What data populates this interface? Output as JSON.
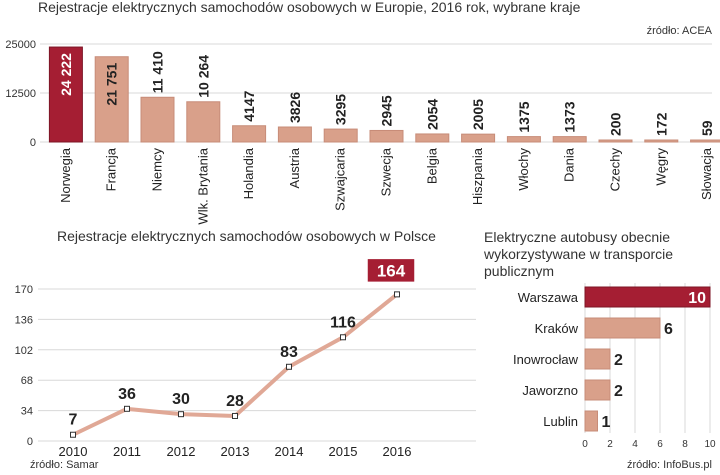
{
  "top_chart": {
    "title": "Rejestracje elektrycznych samochodów osobowych w Europie, 2016 rok, wybrane kraje",
    "source": "źródło: ACEA",
    "highlight_color": "#a51e33",
    "bar_color": "#d9a08a"
  },
  "bottom_left": {
    "title": "Rejestracje elektrycznych samochodów osobowych w Polsce",
    "source": "źródło: Samar",
    "line_color": "#e0a896"
  },
  "bottom_right": {
    "title": "Elektryczne autobusy obecnie wykorzystywane w transporcie publicznym",
    "source": "źródło: InfoBus.pl"
  },
  "chart_data": [
    {
      "type": "bar",
      "title": "Rejestracje elektrycznych samochodów osobowych w Europie, 2016 rok, wybrane kraje",
      "categories": [
        "Norwegia",
        "Francja",
        "Niemcy",
        "Wlk. Brytania",
        "Holandia",
        "Austria",
        "Szwajcaria",
        "Szwecja",
        "Belgia",
        "Hiszpania",
        "Włochy",
        "Dania",
        "Czechy",
        "Węgry",
        "Słowacja"
      ],
      "values": [
        24222,
        21751,
        11410,
        10264,
        4147,
        3826,
        3295,
        2945,
        2054,
        2005,
        1375,
        1373,
        200,
        172,
        59
      ],
      "value_labels": [
        "24 222",
        "21 751",
        "11 410",
        "10 264",
        "4147",
        "3826",
        "3295",
        "2945",
        "2054",
        "2005",
        "1375",
        "1373",
        "200",
        "172",
        "59"
      ],
      "yticks": [
        "0",
        "12500",
        "25000"
      ],
      "ylim": [
        0,
        25000
      ],
      "highlight_index": 0
    },
    {
      "type": "line",
      "title": "Rejestracje elektrycznych samochodów osobowych w Polsce",
      "x": [
        "2010",
        "2011",
        "2012",
        "2013",
        "2014",
        "2015",
        "2016"
      ],
      "values": [
        7,
        36,
        30,
        28,
        83,
        116,
        164
      ],
      "yticks": [
        "0",
        "34",
        "68",
        "102",
        "136",
        "170"
      ],
      "ylim": [
        0,
        170
      ]
    },
    {
      "type": "bar",
      "orientation": "horizontal",
      "title": "Elektryczne autobusy obecnie wykorzystywane w transporcie publicznym",
      "categories": [
        "Warszawa",
        "Kraków",
        "Inowrocław",
        "Jaworzno",
        "Lublin"
      ],
      "values": [
        10,
        6,
        2,
        2,
        1
      ],
      "xticks": [
        "0",
        "2",
        "4",
        "6",
        "8",
        "10"
      ],
      "xlim": [
        0,
        10
      ],
      "highlight_index": 0
    }
  ]
}
